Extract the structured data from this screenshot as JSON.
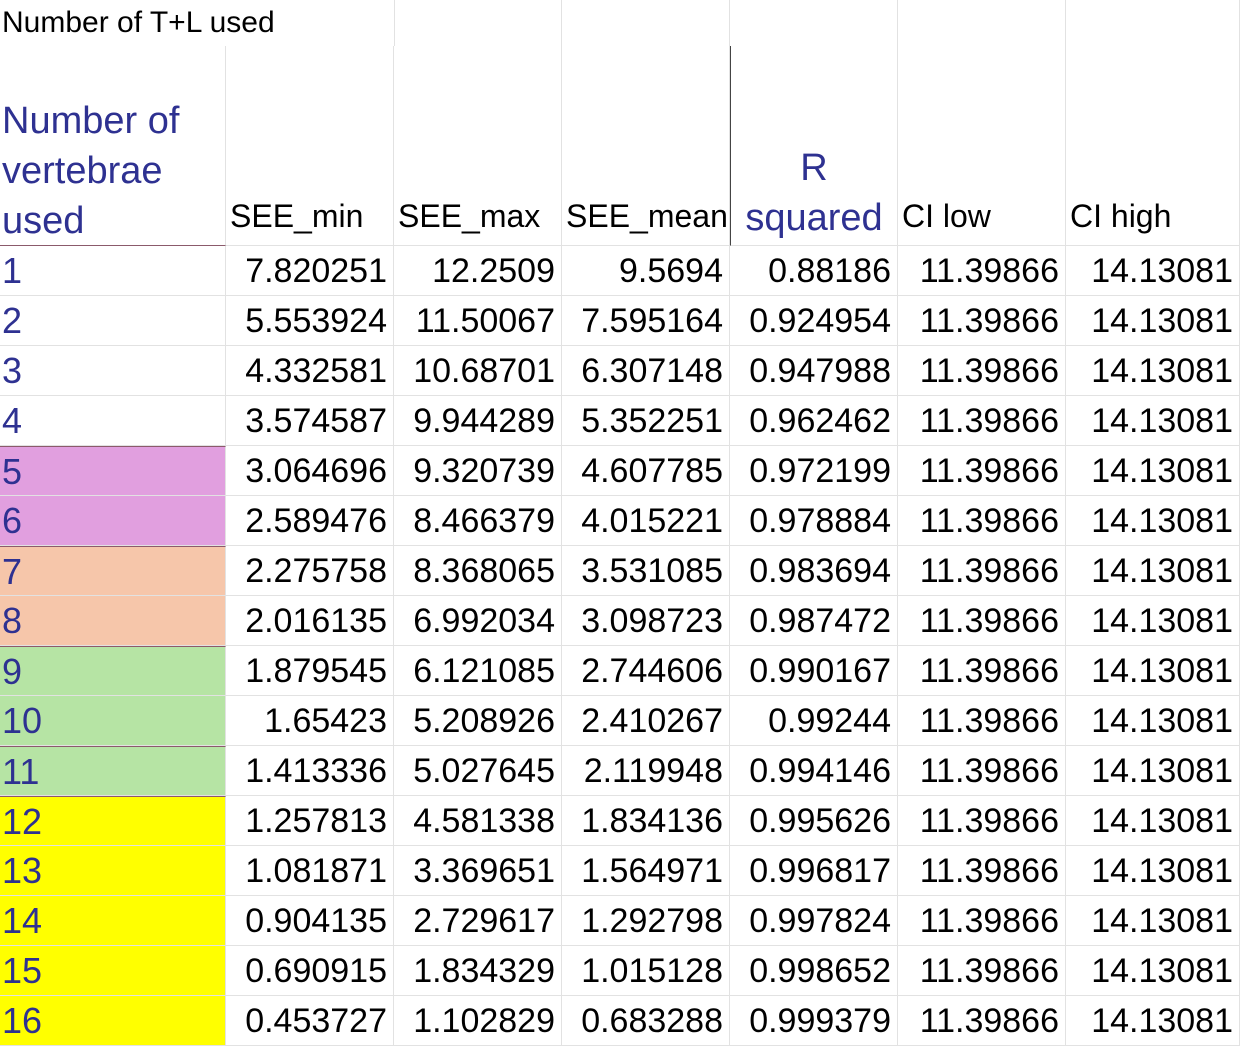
{
  "title": "Number of T+L used",
  "headers": {
    "first": "Number of vertebrae used",
    "see_min": "SEE_min",
    "see_max": "SEE_max",
    "see_mean": "SEE_mean",
    "r_squared": "R squared",
    "ci_low": "CI low",
    "ci_high": "CI high"
  },
  "colors": {
    "label_text": "#2e3191",
    "pink": "#e19fdf",
    "peach": "#f6c6aa",
    "green": "#b6e4a4",
    "yellow": "#ffff00"
  },
  "rows": [
    {
      "n": "1",
      "see_min": "7.820251",
      "see_max": "12.2509",
      "see_mean": "9.5694",
      "r_squared": "0.88186",
      "ci_low": "11.39866",
      "ci_high": "14.13081",
      "highlight": ""
    },
    {
      "n": "2",
      "see_min": "5.553924",
      "see_max": "11.50067",
      "see_mean": "7.595164",
      "r_squared": "0.924954",
      "ci_low": "11.39866",
      "ci_high": "14.13081",
      "highlight": ""
    },
    {
      "n": "3",
      "see_min": "4.332581",
      "see_max": "10.68701",
      "see_mean": "6.307148",
      "r_squared": "0.947988",
      "ci_low": "11.39866",
      "ci_high": "14.13081",
      "highlight": ""
    },
    {
      "n": "4",
      "see_min": "3.574587",
      "see_max": "9.944289",
      "see_mean": "5.352251",
      "r_squared": "0.962462",
      "ci_low": "11.39866",
      "ci_high": "14.13081",
      "highlight": ""
    },
    {
      "n": "5",
      "see_min": "3.064696",
      "see_max": "9.320739",
      "see_mean": "4.607785",
      "r_squared": "0.972199",
      "ci_low": "11.39866",
      "ci_high": "14.13081",
      "highlight": "pink"
    },
    {
      "n": "6",
      "see_min": "2.589476",
      "see_max": "8.466379",
      "see_mean": "4.015221",
      "r_squared": "0.978884",
      "ci_low": "11.39866",
      "ci_high": "14.13081",
      "highlight": "pink"
    },
    {
      "n": "7",
      "see_min": "2.275758",
      "see_max": "8.368065",
      "see_mean": "3.531085",
      "r_squared": "0.983694",
      "ci_low": "11.39866",
      "ci_high": "14.13081",
      "highlight": "peach"
    },
    {
      "n": "8",
      "see_min": "2.016135",
      "see_max": "6.992034",
      "see_mean": "3.098723",
      "r_squared": "0.987472",
      "ci_low": "11.39866",
      "ci_high": "14.13081",
      "highlight": "peach"
    },
    {
      "n": "9",
      "see_min": "1.879545",
      "see_max": "6.121085",
      "see_mean": "2.744606",
      "r_squared": "0.990167",
      "ci_low": "11.39866",
      "ci_high": "14.13081",
      "highlight": "green"
    },
    {
      "n": "10",
      "see_min": "1.65423",
      "see_max": "5.208926",
      "see_mean": "2.410267",
      "r_squared": "0.99244",
      "ci_low": "11.39866",
      "ci_high": "14.13081",
      "highlight": "green"
    },
    {
      "n": "11",
      "see_min": "1.413336",
      "see_max": "5.027645",
      "see_mean": "2.119948",
      "r_squared": "0.994146",
      "ci_low": "11.39866",
      "ci_high": "14.13081",
      "highlight": "green"
    },
    {
      "n": "12",
      "see_min": "1.257813",
      "see_max": "4.581338",
      "see_mean": "1.834136",
      "r_squared": "0.995626",
      "ci_low": "11.39866",
      "ci_high": "14.13081",
      "highlight": "yellow"
    },
    {
      "n": "13",
      "see_min": "1.081871",
      "see_max": "3.369651",
      "see_mean": "1.564971",
      "r_squared": "0.996817",
      "ci_low": "11.39866",
      "ci_high": "14.13081",
      "highlight": "yellow"
    },
    {
      "n": "14",
      "see_min": "0.904135",
      "see_max": "2.729617",
      "see_mean": "1.292798",
      "r_squared": "0.997824",
      "ci_low": "11.39866",
      "ci_high": "14.13081",
      "highlight": "yellow"
    },
    {
      "n": "15",
      "see_min": "0.690915",
      "see_max": "1.834329",
      "see_mean": "1.015128",
      "r_squared": "0.998652",
      "ci_low": "11.39866",
      "ci_high": "14.13081",
      "highlight": "yellow"
    },
    {
      "n": "16",
      "see_min": "0.453727",
      "see_max": "1.102829",
      "see_mean": "0.683288",
      "r_squared": "0.999379",
      "ci_low": "11.39866",
      "ci_high": "14.13081",
      "highlight": "yellow"
    }
  ]
}
